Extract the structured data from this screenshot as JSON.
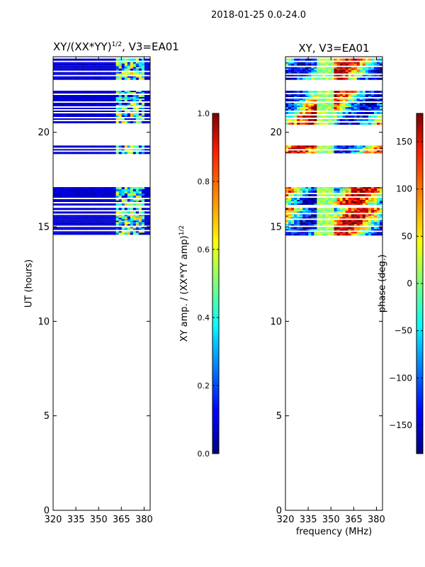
{
  "chart_data": [
    {
      "type": "heatmap",
      "title": "XY/(XX*YY)",
      "title_superscript": "1/2",
      "title_suffix": ", V3=EA01",
      "ylabel": "UT (hours)",
      "xlabel": "",
      "xlim": [
        320,
        384
      ],
      "ylim": [
        0,
        24
      ],
      "xticks": [
        320,
        335,
        350,
        365,
        380
      ],
      "yticks": [
        0,
        5,
        10,
        15,
        20
      ],
      "colorbar": {
        "label": "XY amp. / (XX*YY amp)",
        "label_superscript": "1/2",
        "range": [
          0.0,
          1.0
        ],
        "ticks": [
          0.0,
          0.2,
          0.4,
          0.6,
          0.8,
          1.0
        ],
        "tick_labels": [
          "0.0",
          "0.2",
          "0.4",
          "0.6",
          "0.8",
          "1.0"
        ],
        "colormap": "jet"
      },
      "row_bands_hours": [
        [
          14.5,
          16.0
        ],
        [
          16.2,
          17.1
        ],
        [
          18.9,
          19.3
        ],
        [
          20.5,
          22.2
        ],
        [
          22.8,
          23.9
        ]
      ],
      "bright_channel_range_mhz": [
        362,
        380
      ],
      "value_background": 0.05,
      "value_bright": 0.35
    },
    {
      "type": "heatmap",
      "title": "XY, V3=EA01",
      "ylabel": "",
      "xlabel": "frequency (MHz)",
      "xlim": [
        320,
        384
      ],
      "ylim": [
        0,
        24
      ],
      "xticks": [
        320,
        335,
        350,
        365,
        380
      ],
      "yticks": [
        0,
        5,
        10,
        15,
        20
      ],
      "colorbar": {
        "label": "phase (deg.)",
        "range": [
          -180,
          180
        ],
        "ticks": [
          -150,
          -100,
          -50,
          0,
          50,
          100,
          150
        ],
        "tick_labels": [
          "−150",
          "−100",
          "−50",
          "0",
          "50",
          "100",
          "150"
        ],
        "colormap": "jet"
      },
      "row_bands_hours": [
        [
          14.5,
          16.0
        ],
        [
          16.2,
          17.1
        ],
        [
          18.9,
          19.3
        ],
        [
          20.5,
          22.2
        ],
        [
          22.8,
          23.9
        ]
      ]
    }
  ],
  "suptitle": "2018-01-25 0.0-24.0",
  "colors": {
    "axis": "#000000",
    "background": "#ffffff"
  }
}
